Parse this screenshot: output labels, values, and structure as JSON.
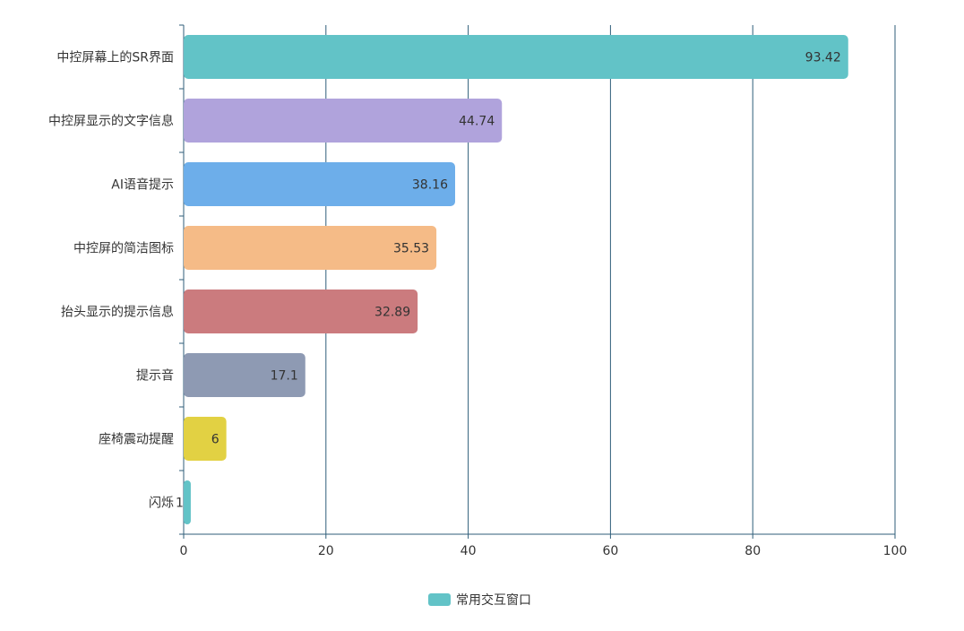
{
  "chart_data": {
    "type": "bar",
    "orientation": "horizontal",
    "categories": [
      "中控屏幕上的SR界面",
      "中控屏显示的文字信息",
      "AI语音提示",
      "中控屏的简洁图标",
      "抬头显示的提示信息",
      "提示音",
      "座椅震动提醒",
      "闪烁"
    ],
    "series": [
      {
        "name": "常用交互窗口",
        "values": [
          93.42,
          44.74,
          38.16,
          35.53,
          32.89,
          17.1,
          6,
          1
        ]
      }
    ],
    "value_labels": [
      "93.42",
      "44.74",
      "38.16",
      "35.53",
      "32.89",
      "17.1",
      "6",
      "1"
    ],
    "bar_colors": [
      "#62c3c7",
      "#b0a3dc",
      "#6daeea",
      "#f5bb87",
      "#cb7b7e",
      "#8e9ab3",
      "#e2d143",
      "#62c3c7"
    ],
    "xlim": [
      0,
      100
    ],
    "xticks": [
      "0",
      "20",
      "40",
      "60",
      "80",
      "100"
    ],
    "grid": true,
    "legend_position": "bottom-center",
    "legend_color": "#62c3c7",
    "axis_color": "#2f5e7a"
  }
}
